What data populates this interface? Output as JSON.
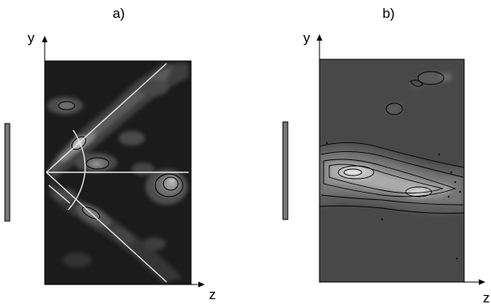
{
  "panels": [
    {
      "label": "a)",
      "y_axis": "y",
      "z_axis": "z"
    },
    {
      "label": "b)",
      "y_axis": "y",
      "z_axis": "z"
    }
  ]
}
